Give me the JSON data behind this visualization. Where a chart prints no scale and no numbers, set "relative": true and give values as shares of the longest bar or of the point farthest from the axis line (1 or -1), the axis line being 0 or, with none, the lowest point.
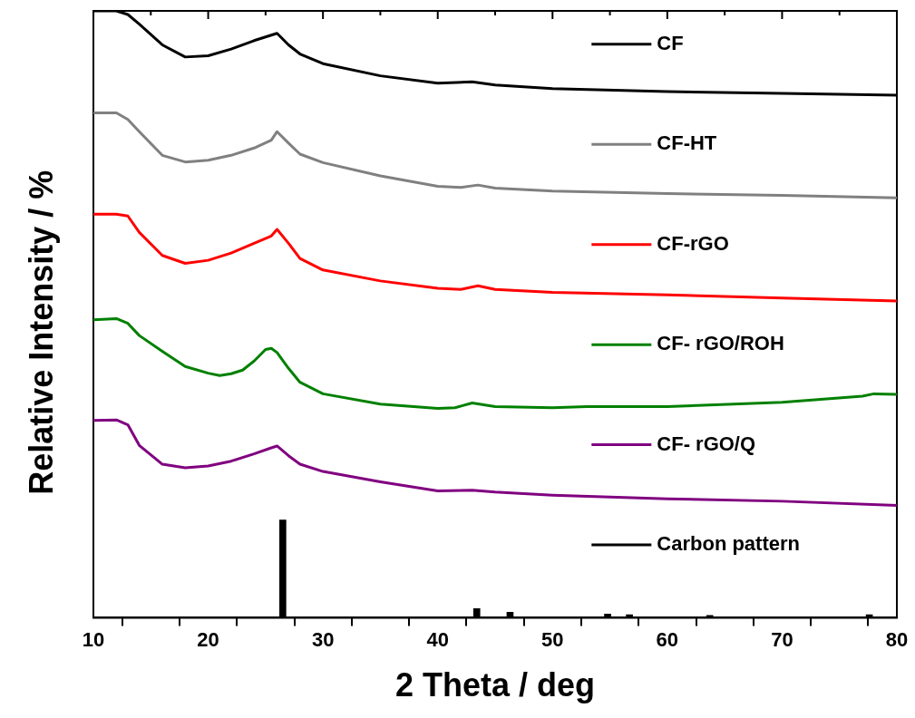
{
  "chart_data": {
    "type": "line",
    "xlabel": "2 Theta / deg",
    "ylabel": "Relative Intensity / %",
    "relative": true,
    "xlim": [
      10,
      80
    ],
    "xticks": [
      10,
      {
        "value": 15,
        "label": null
      },
      20,
      {
        "value": 25,
        "label": null
      },
      30,
      {
        "value": 35,
        "label": null
      },
      40,
      {
        "value": 45,
        "label": null
      },
      50,
      {
        "value": 55,
        "label": null
      },
      60,
      {
        "value": 65,
        "label": null
      },
      70,
      {
        "value": 75,
        "label": null
      },
      80
    ],
    "grid": false,
    "legend": "right",
    "marker": "none",
    "line_style": "solid",
    "x": [
      10,
      12,
      13,
      14,
      16,
      18,
      20,
      22,
      24,
      25.5,
      26,
      27,
      28,
      30,
      35,
      40,
      43,
      45,
      50,
      60,
      70,
      80
    ],
    "series": [
      {
        "name": "CF",
        "color": "#000000",
        "values": [
          1.0,
          1.0,
          0.994,
          0.978,
          0.944,
          0.924,
          0.926,
          0.937,
          0.951,
          0.96,
          0.963,
          0.944,
          0.929,
          0.913,
          0.893,
          0.881,
          0.883,
          0.878,
          0.872,
          0.867,
          0.864,
          0.861
        ]
      },
      {
        "name": "CF-HT",
        "color": "#808080",
        "x": [
          10,
          12,
          13,
          14,
          16,
          18,
          20,
          22,
          24,
          25.5,
          26,
          27,
          28,
          30,
          35,
          40,
          42,
          43.5,
          45,
          50,
          60,
          70,
          80
        ],
        "values": [
          0.832,
          0.832,
          0.821,
          0.801,
          0.762,
          0.751,
          0.754,
          0.762,
          0.774,
          0.787,
          0.801,
          0.782,
          0.764,
          0.75,
          0.728,
          0.711,
          0.709,
          0.713,
          0.708,
          0.703,
          0.699,
          0.696,
          0.692
        ]
      },
      {
        "name": "CF-rGO",
        "color": "#ff0000",
        "x": [
          10,
          12,
          13,
          14,
          16,
          18,
          20,
          22,
          24,
          25.5,
          26,
          27,
          28,
          30,
          35,
          40,
          42,
          43.5,
          45,
          50,
          60,
          70,
          80
        ],
        "values": [
          0.665,
          0.665,
          0.662,
          0.635,
          0.597,
          0.584,
          0.589,
          0.601,
          0.617,
          0.629,
          0.64,
          0.617,
          0.592,
          0.573,
          0.555,
          0.543,
          0.541,
          0.547,
          0.541,
          0.536,
          0.532,
          0.527,
          0.522
        ]
      },
      {
        "name": "CF- rGO/ROH",
        "color": "#008000",
        "x": [
          10,
          12,
          13,
          14,
          16,
          18,
          20,
          21,
          22,
          23,
          24,
          25,
          25.5,
          26,
          27,
          28,
          30,
          35,
          40,
          41.5,
          43,
          45,
          50,
          53,
          60,
          70,
          77,
          78,
          80
        ],
        "values": [
          0.491,
          0.493,
          0.485,
          0.465,
          0.439,
          0.414,
          0.403,
          0.399,
          0.402,
          0.408,
          0.423,
          0.442,
          0.444,
          0.437,
          0.411,
          0.388,
          0.369,
          0.352,
          0.345,
          0.346,
          0.354,
          0.348,
          0.346,
          0.348,
          0.348,
          0.355,
          0.365,
          0.369,
          0.368
        ]
      },
      {
        "name": "CF- rGO/Q",
        "color": "#800080",
        "values": [
          0.325,
          0.326,
          0.318,
          0.284,
          0.253,
          0.247,
          0.25,
          0.258,
          0.27,
          0.28,
          0.283,
          0.267,
          0.253,
          0.241,
          0.224,
          0.209,
          0.21,
          0.207,
          0.202,
          0.196,
          0.192,
          0.185
        ]
      },
      {
        "name": "Carbon pattern",
        "type": "bar",
        "color": "#000000",
        "x": [
          26.5,
          43.4,
          46.3,
          54.8,
          56.7,
          63.7,
          77.6
        ],
        "values": [
          0.161,
          0.015,
          0.009,
          0.006,
          0.005,
          0.004,
          0.005
        ]
      }
    ]
  }
}
